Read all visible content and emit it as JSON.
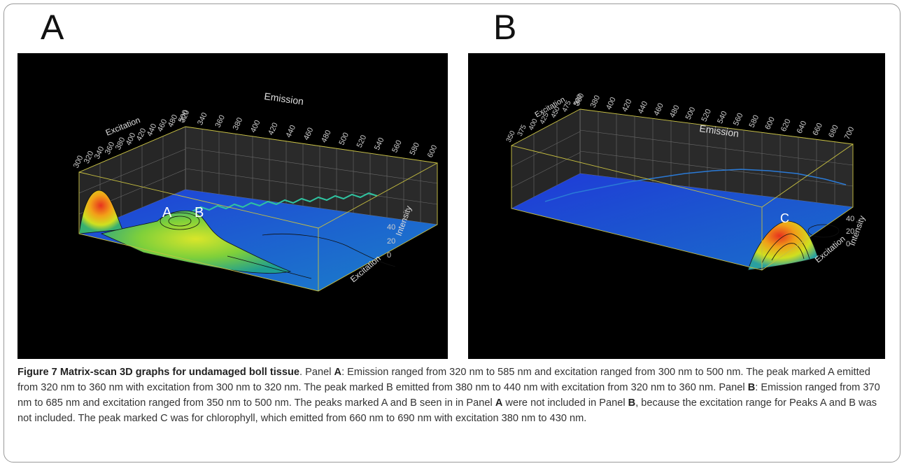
{
  "panels": [
    {
      "letter": "A",
      "emission_label": "Emission",
      "excitation_label": "Excitation",
      "intensity_label": "Intensity",
      "emission_ticks": [
        "320",
        "340",
        "360",
        "380",
        "400",
        "420",
        "440",
        "460",
        "480",
        "500",
        "520",
        "540",
        "560",
        "580",
        "600"
      ],
      "excitation_ticks": [
        "300",
        "320",
        "340",
        "360",
        "380",
        "400",
        "420",
        "440",
        "460",
        "480",
        "500"
      ],
      "intensity_ticks": [
        "0",
        "20",
        "40"
      ],
      "peak_labels": [
        "A",
        "B"
      ]
    },
    {
      "letter": "B",
      "emission_label": "Emission",
      "excitation_label": "Excitation",
      "intensity_label": "Intensity",
      "emission_ticks": [
        "360",
        "380",
        "400",
        "420",
        "440",
        "460",
        "480",
        "500",
        "520",
        "540",
        "560",
        "580",
        "600",
        "620",
        "640",
        "660",
        "680",
        "700"
      ],
      "excitation_ticks": [
        "350",
        "375",
        "400",
        "425",
        "450",
        "475",
        "500"
      ],
      "intensity_ticks": [
        "0",
        "20",
        "40"
      ],
      "peak_labels": [
        "C"
      ]
    }
  ],
  "caption": {
    "title": "Figure 7 Matrix-scan 3D graphs for undamaged boll tissue",
    "p1": ". Panel ",
    "pA1": "A",
    "p2": ": Emission ranged from 320 nm to 585 nm and excitation ranged from 300 nm to 500 nm. The peak marked A emitted from 320 nm to 360 nm with excitation from 300 nm to 320 nm. The peak marked B emitted from 380 nm to 440 nm with excitation from 320 nm to 360 nm. Panel ",
    "pB1": "B",
    "p3": ": Emission ranged from 370 nm to 685 nm and excitation ranged from 350 nm to 500 nm. The peaks marked A and B seen in in Panel ",
    "pA2": "A",
    "p4": " were not included in Panel ",
    "pB2": "B",
    "p5": ", because the excitation range for Peaks A and B was not included. The peak marked C was for chlorophyll, which emitted from 660 nm to 690 nm with excitation 380 nm to 430 nm."
  }
}
